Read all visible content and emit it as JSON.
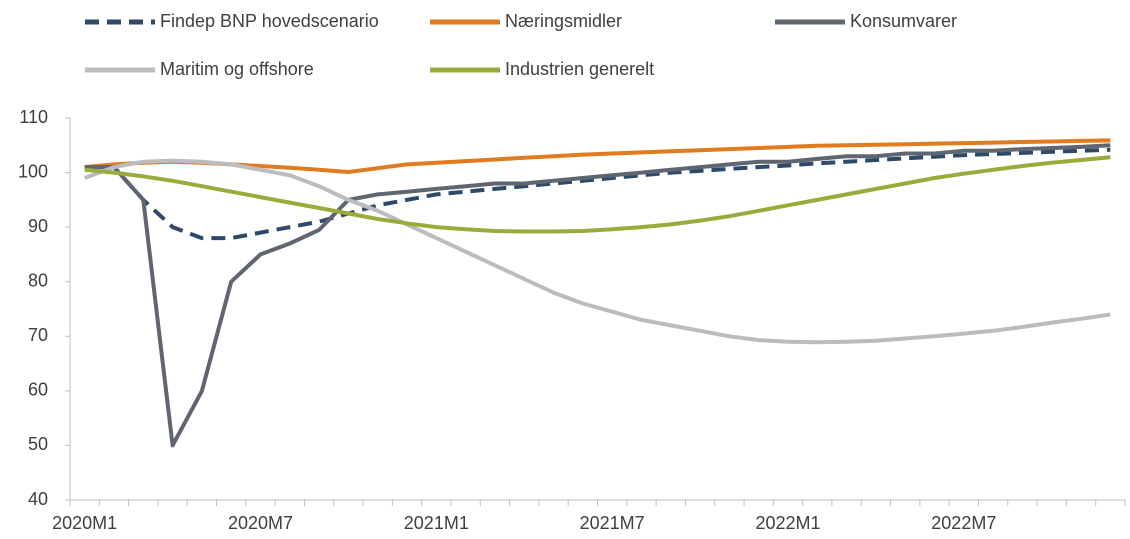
{
  "chart_data": {
    "type": "line",
    "categories": [
      "2020M1",
      null,
      null,
      null,
      null,
      null,
      "2020M7",
      null,
      null,
      null,
      null,
      null,
      "2021M1",
      null,
      null,
      null,
      null,
      null,
      "2021M7",
      null,
      null,
      null,
      null,
      null,
      "2022M1",
      null,
      null,
      null,
      null,
      null,
      "2022M7",
      null,
      null,
      null,
      null,
      null
    ],
    "ylim": [
      40,
      110
    ],
    "yticks": [
      40,
      50,
      60,
      70,
      80,
      90,
      100,
      110
    ],
    "grid": false,
    "series": [
      {
        "name": "Findep BNP hovedscenario",
        "color": "#2e4a6b",
        "dashed": true,
        "values": [
          101,
          101,
          95,
          90,
          88,
          88,
          89,
          90,
          91,
          92.5,
          94,
          95,
          96,
          96.5,
          97,
          97.5,
          98,
          98.5,
          99,
          99.5,
          100,
          100.3,
          100.7,
          101,
          101.3,
          101.7,
          102,
          102.3,
          102.6,
          102.9,
          103.2,
          103.4,
          103.6,
          103.8,
          104,
          104.2
        ]
      },
      {
        "name": "Næringsmidler",
        "color": "#e07b20",
        "values": [
          101,
          101.5,
          101.8,
          102,
          101.8,
          101.5,
          101.2,
          100.9,
          100.5,
          100.1,
          100.8,
          101.5,
          101.8,
          102.1,
          102.4,
          102.7,
          103,
          103.3,
          103.5,
          103.7,
          103.9,
          104.1,
          104.3,
          104.5,
          104.7,
          104.9,
          105,
          105.1,
          105.2,
          105.3,
          105.4,
          105.5,
          105.6,
          105.7,
          105.8,
          105.9
        ]
      },
      {
        "name": "Konsumvarer",
        "color": "#5f6670",
        "values": [
          101,
          101,
          95,
          50,
          60,
          80,
          85,
          87,
          89.5,
          95,
          96,
          96.5,
          97,
          97.5,
          98,
          98,
          98.5,
          99,
          99.5,
          100,
          100.5,
          101,
          101.5,
          102,
          102,
          102.5,
          103,
          103,
          103.5,
          103.5,
          104,
          104,
          104.3,
          104.5,
          104.7,
          105
        ]
      },
      {
        "name": "Maritim og offshore",
        "color": "#bbbcbf",
        "values": [
          99,
          101,
          102,
          102.2,
          102,
          101.5,
          100.5,
          99.5,
          97.5,
          95,
          93,
          90.5,
          88,
          85.5,
          83,
          80.5,
          78,
          76,
          74.5,
          73,
          72,
          71,
          70,
          69.3,
          69,
          68.9,
          69,
          69.2,
          69.6,
          70,
          70.5,
          71,
          71.7,
          72.5,
          73.2,
          74
        ]
      },
      {
        "name": "Industrien generelt",
        "color": "#9aab3c",
        "values": [
          100.5,
          100,
          99.3,
          98.5,
          97.5,
          96.5,
          95.5,
          94.5,
          93.5,
          92.5,
          91.5,
          90.7,
          90,
          89.6,
          89.3,
          89.2,
          89.2,
          89.3,
          89.6,
          90,
          90.5,
          91.2,
          92,
          93,
          94,
          95,
          96,
          97,
          98,
          99,
          99.8,
          100.5,
          101.2,
          101.8,
          102.3,
          102.8
        ]
      }
    ]
  }
}
